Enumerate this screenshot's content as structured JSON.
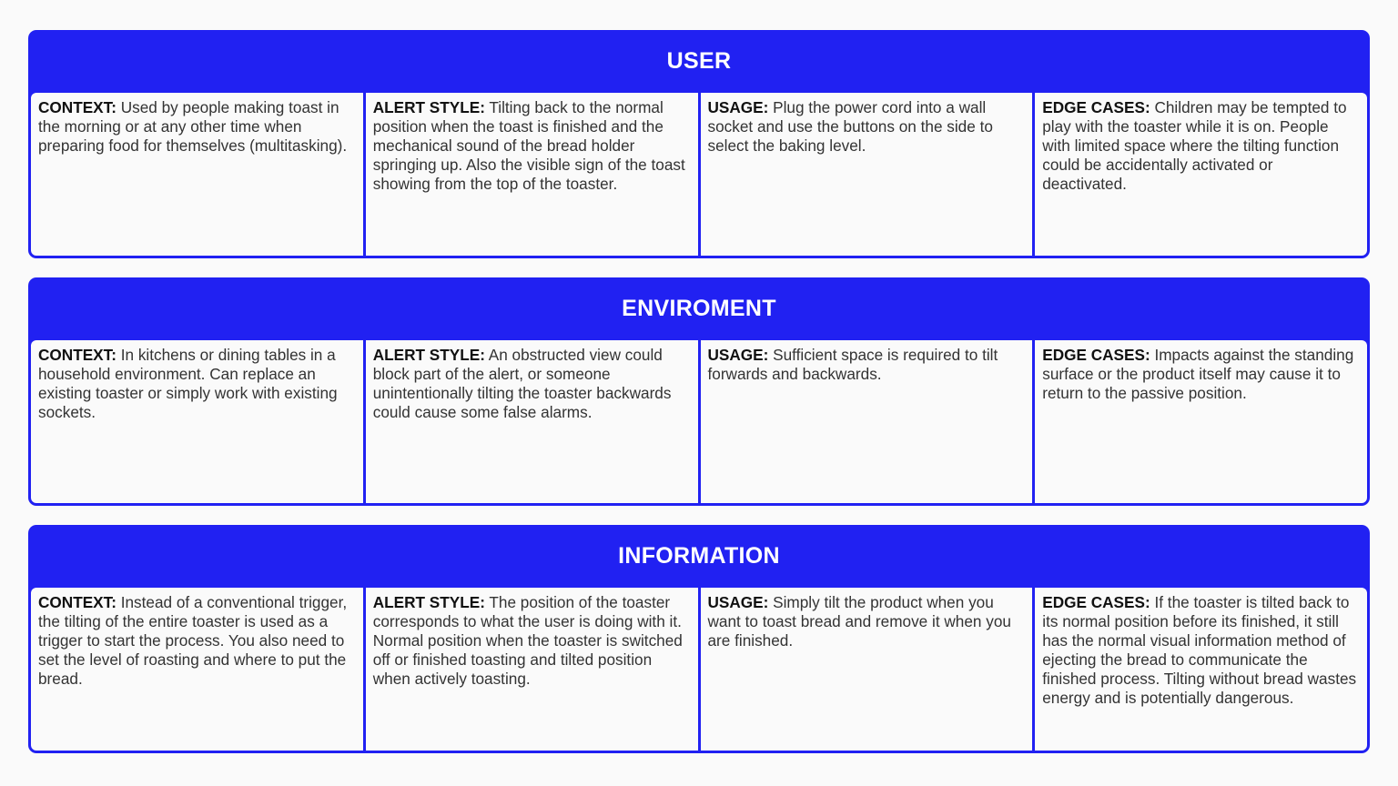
{
  "colors": {
    "accent": "#2121f2",
    "background": "#fafafa"
  },
  "sections": [
    {
      "title": "USER",
      "cells": [
        {
          "label": "CONTEXT:",
          "text": " Used by people making toast in the morning or at any other time when preparing food for themselves (multitasking)."
        },
        {
          "label": "ALERT STYLE:",
          "text": " Tilting back to the normal position when the toast is finished and the mechanical sound of the bread holder springing up. Also the visible sign of the toast showing from the top of the toaster."
        },
        {
          "label": "USAGE:",
          "text": " Plug the power cord into a wall socket and use the buttons on the side  to select the baking level."
        },
        {
          "label": "EDGE CASES:",
          "text": " Children may be tempted to play with the toaster while it is on. People with limited space where the tilting function could be accidentally activated or deactivated."
        }
      ]
    },
    {
      "title": "ENVIROMENT",
      "cells": [
        {
          "label": "CONTEXT:",
          "text": " In kitchens or dining tables in a household environment. Can replace an existing toaster or simply work with existing sockets."
        },
        {
          "label": "ALERT STYLE:",
          "text": " An obstructed view could block part of the alert, or someone unintentionally tilting the toaster backwards could cause some false alarms."
        },
        {
          "label": "USAGE:",
          "text": " Sufficient space is required to tilt forwards and backwards."
        },
        {
          "label": "EDGE CASES:",
          "text": " Impacts against the standing surface or the product itself may cause it to return to the passive position."
        }
      ]
    },
    {
      "title": "INFORMATION",
      "cells": [
        {
          "label": "CONTEXT:",
          "text": " Instead of a conventional trigger, the tilting of the entire toaster is used as a trigger to start the process. You also need to set the level of roasting and where to put the bread."
        },
        {
          "label": "ALERT STYLE:",
          "text": " The position of the toaster corresponds to what the user is doing with it. Normal position when the toaster is switched off or finished toasting and tilted position when actively toasting."
        },
        {
          "label": "USAGE:",
          "text": " Simply tilt the product when you want to toast bread and remove it when you are finished."
        },
        {
          "label": "EDGE CASES:",
          "text": " If the toaster is tilted back to its normal position before its finished, it still has the normal visual information method of ejecting the bread to communicate the finished process. Tilting without bread wastes energy and is potentially dangerous."
        }
      ]
    }
  ]
}
